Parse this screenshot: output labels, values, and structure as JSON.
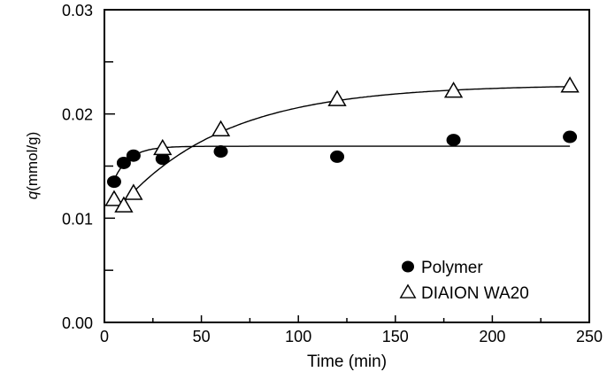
{
  "chart_data": {
    "type": "scatter",
    "title": "",
    "xlabel": "Time (min)",
    "ylabel": "q(mmol/g)",
    "xlim": [
      0,
      250
    ],
    "ylim": [
      0.0,
      0.03
    ],
    "x_ticks": [
      0,
      50,
      100,
      150,
      200,
      250
    ],
    "x_tick_labels": [
      "0",
      "50",
      "100",
      "150",
      "200",
      "250"
    ],
    "x_minor_ticks": [
      25,
      75,
      125,
      175,
      225
    ],
    "y_ticks": [
      0.0,
      0.01,
      0.02,
      0.03
    ],
    "y_tick_labels": [
      "0.00",
      "0.01",
      "0.02",
      "0.03"
    ],
    "y_minor_ticks": [
      0.005,
      0.015,
      0.025
    ],
    "grid": false,
    "legend_position": "bottom-right",
    "series": [
      {
        "name": "Polymer",
        "marker": "filled-circle",
        "x": [
          5,
          10,
          15,
          30,
          60,
          120,
          180,
          240
        ],
        "y": [
          0.0135,
          0.0153,
          0.016,
          0.0157,
          0.0164,
          0.0159,
          0.0175,
          0.0178
        ],
        "fit": {
          "model": "q = a - b*exp(-t/c)",
          "a": 0.0169,
          "b": 0.006,
          "c": 8,
          "t_range": [
            4,
            240
          ]
        }
      },
      {
        "name": "DIAION WA20",
        "marker": "open-triangle",
        "x": [
          5,
          10,
          15,
          30,
          60,
          120,
          180,
          240
        ],
        "y": [
          0.0118,
          0.0112,
          0.0124,
          0.0167,
          0.0185,
          0.0214,
          0.0222,
          0.0227
        ],
        "fit": {
          "model": "q = a - b*exp(-t/c)",
          "a": 0.0228,
          "b": 0.0135,
          "c": 55,
          "t_range": [
            9,
            240
          ]
        }
      }
    ]
  }
}
